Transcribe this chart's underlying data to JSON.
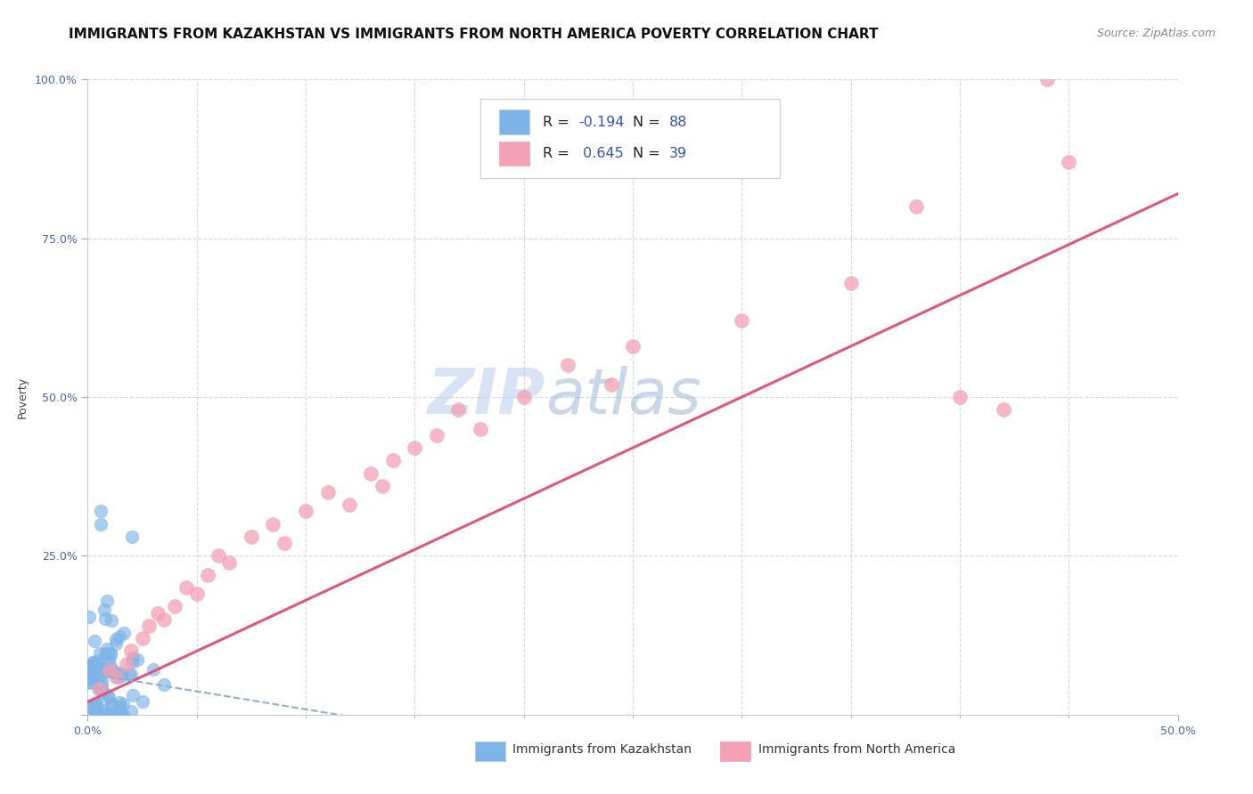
{
  "title": "IMMIGRANTS FROM KAZAKHSTAN VS IMMIGRANTS FROM NORTH AMERICA POVERTY CORRELATION CHART",
  "source": "Source: ZipAtlas.com",
  "ylabel": "Poverty",
  "xlim": [
    0.0,
    0.5
  ],
  "ylim": [
    0.0,
    1.0
  ],
  "kaz_R": -0.194,
  "kaz_N": 88,
  "na_R": 0.645,
  "na_N": 39,
  "kaz_color": "#7eb5e8",
  "na_color": "#f4a0b5",
  "kaz_line_color": "#8ab0d8",
  "na_line_color": "#e05878",
  "watermark_zip": "ZIP",
  "watermark_atlas": "atlas",
  "legend_kaz": "Immigrants from Kazakhstan",
  "legend_na": "Immigrants from North America",
  "background_color": "#ffffff",
  "grid_color": "#d8d8d8",
  "title_fontsize": 11,
  "source_fontsize": 9,
  "axis_label_fontsize": 9,
  "tick_fontsize": 9,
  "tick_color": "#4466bb",
  "legend_fontsize": 10,
  "na_points_x": [
    0.005,
    0.01,
    0.013,
    0.018,
    0.02,
    0.025,
    0.028,
    0.032,
    0.035,
    0.04,
    0.045,
    0.05,
    0.055,
    0.06,
    0.065,
    0.075,
    0.085,
    0.09,
    0.1,
    0.11,
    0.12,
    0.13,
    0.135,
    0.14,
    0.15,
    0.16,
    0.17,
    0.18,
    0.2,
    0.22,
    0.24,
    0.25,
    0.3,
    0.35,
    0.38,
    0.4,
    0.42,
    0.44,
    0.45
  ],
  "na_points_y": [
    0.04,
    0.07,
    0.06,
    0.08,
    0.1,
    0.12,
    0.14,
    0.16,
    0.15,
    0.17,
    0.2,
    0.19,
    0.22,
    0.25,
    0.24,
    0.28,
    0.3,
    0.27,
    0.32,
    0.35,
    0.33,
    0.38,
    0.36,
    0.4,
    0.42,
    0.44,
    0.48,
    0.45,
    0.5,
    0.55,
    0.52,
    0.58,
    0.62,
    0.68,
    0.8,
    0.5,
    0.48,
    1.0,
    0.87
  ],
  "na_trend_x0": 0.0,
  "na_trend_y0": 0.02,
  "na_trend_x1": 0.5,
  "na_trend_y1": 0.82,
  "kaz_trend_x0": 0.0,
  "kaz_trend_y0": 0.065,
  "kaz_trend_x1": 0.15,
  "kaz_trend_y1": -0.02
}
